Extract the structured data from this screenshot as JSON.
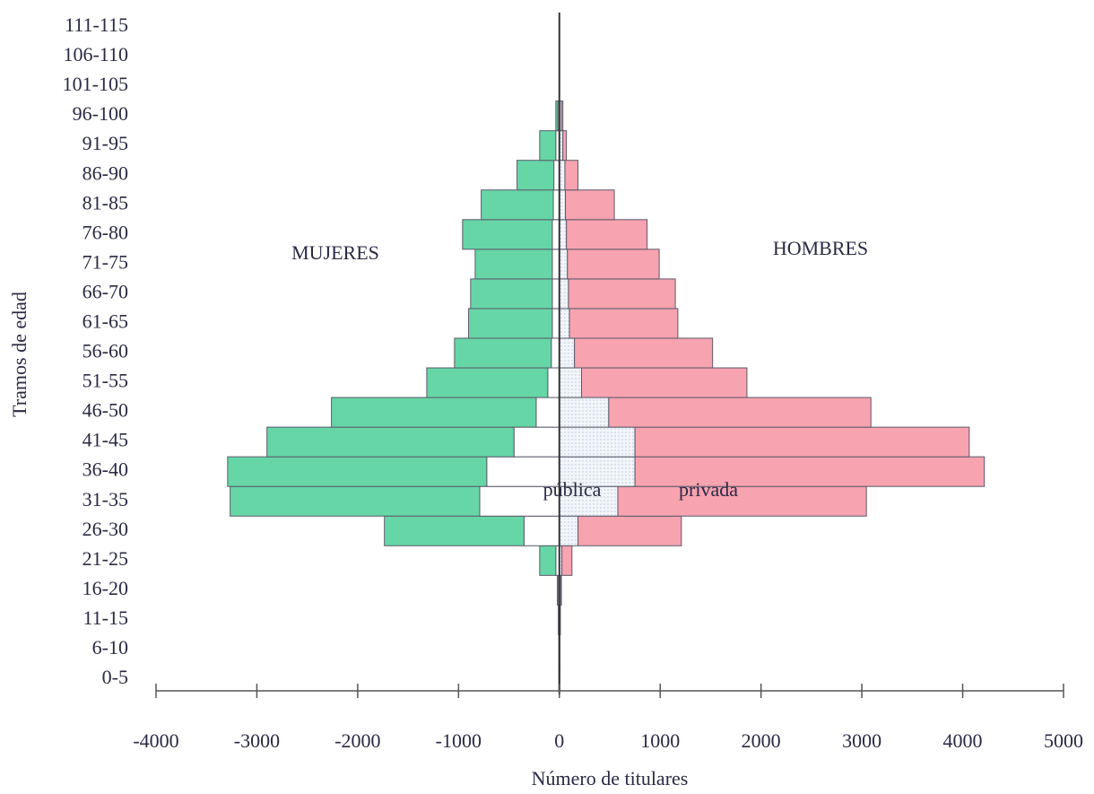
{
  "chart_data": {
    "type": "bar",
    "orientation": "horizontal",
    "stacked": true,
    "x_label": "Número de titulares",
    "y_label": "Tramos de edad",
    "annotations": [
      "MUJERES",
      "HOMBRES",
      "pública",
      "privada"
    ],
    "categories": [
      "0-5",
      "6-10",
      "11-15",
      "16-20",
      "21-25",
      "26-30",
      "31-35",
      "36-40",
      "41-45",
      "46-50",
      "51-55",
      "56-60",
      "61-65",
      "66-70",
      "71-75",
      "76-80",
      "81-85",
      "86-90",
      "91-95",
      "96-100",
      "101-105",
      "106-110",
      "111-115"
    ],
    "series": [
      {
        "color": "#ffffff",
        "values": [
          -5,
          -5,
          -10,
          -15,
          -35,
          -350,
          -790,
          -720,
          -450,
          -230,
          -115,
          -80,
          -70,
          -70,
          -70,
          -70,
          -60,
          -55,
          -35,
          -15,
          0,
          0,
          0
        ]
      },
      {
        "color": "#66d6a6",
        "values": [
          0,
          0,
          0,
          -5,
          -160,
          -1385,
          -2475,
          -2570,
          -2450,
          -2030,
          -1200,
          -960,
          -830,
          -810,
          -765,
          -890,
          -715,
          -365,
          -160,
          -20,
          0,
          0,
          0
        ]
      },
      {
        "color": "#eef2f8",
        "values": [
          5,
          5,
          10,
          15,
          25,
          185,
          580,
          750,
          750,
          490,
          220,
          150,
          100,
          90,
          80,
          70,
          60,
          55,
          35,
          20,
          0,
          0,
          0
        ]
      },
      {
        "color": "#f8a3b0",
        "values": [
          0,
          0,
          0,
          5,
          100,
          1025,
          2465,
          3465,
          3315,
          2600,
          1640,
          1370,
          1075,
          1060,
          910,
          800,
          485,
          130,
          35,
          15,
          0,
          0,
          0
        ]
      }
    ],
    "xlim": [
      -4000,
      5000
    ],
    "xticks": [
      -4000,
      -3000,
      -2000,
      -1000,
      0,
      1000,
      2000,
      3000,
      4000,
      5000
    ]
  }
}
